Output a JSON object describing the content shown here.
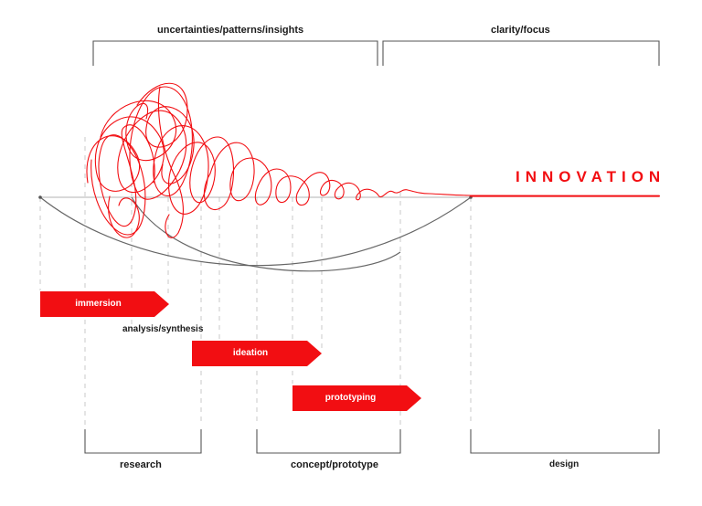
{
  "top_labels": {
    "left": "uncertainties/patterns/insights",
    "right": "clarity/focus"
  },
  "innovation": "INNOVATION",
  "phases": {
    "immersion": "immersion",
    "analysis": "analysis/synthesis",
    "ideation": "ideation",
    "prototyping": "prototyping"
  },
  "bottom_labels": {
    "research": "research",
    "concept": "concept/prototype",
    "design": "design"
  },
  "colors": {
    "accent": "#f20e12",
    "line": "#555555",
    "guide": "#c8c8c8"
  }
}
